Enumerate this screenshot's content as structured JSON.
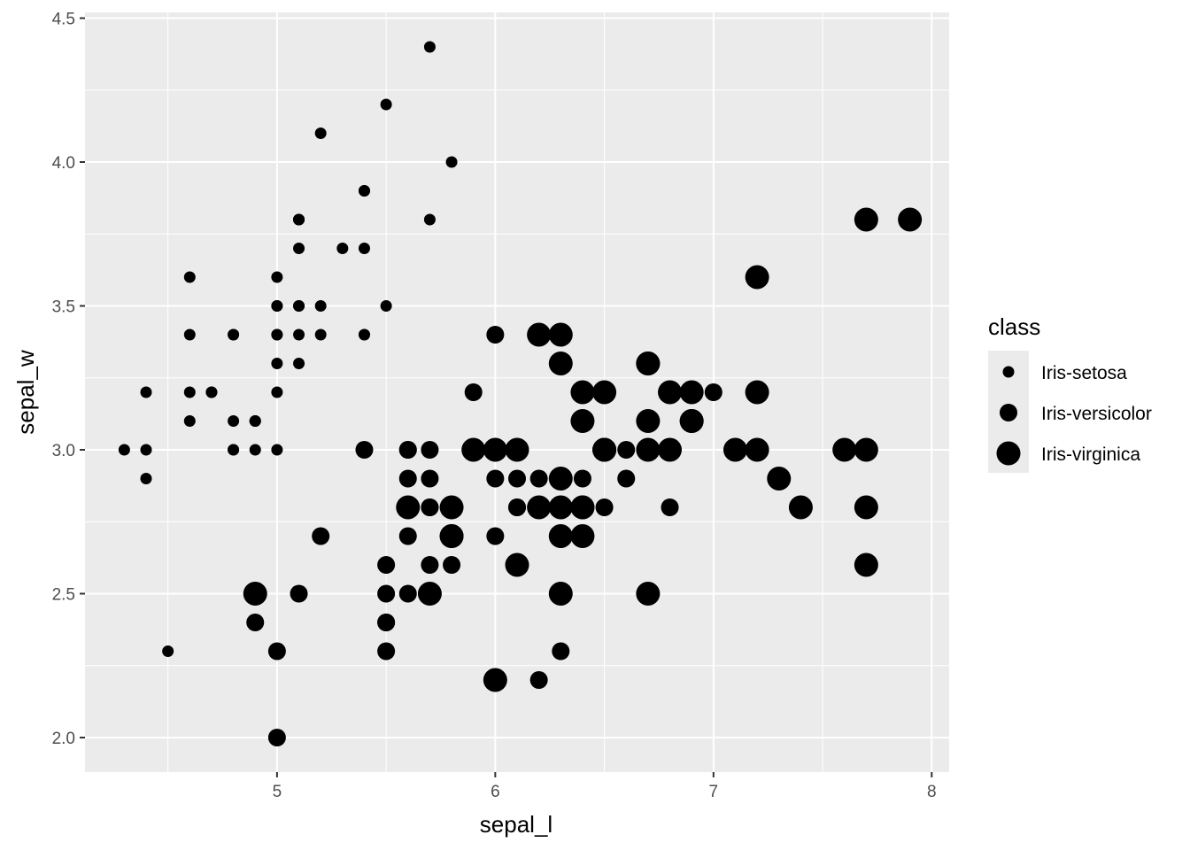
{
  "chart_data": {
    "type": "scatter",
    "xlabel": "sepal_l",
    "ylabel": "sepal_w",
    "xlim": [
      4.12,
      8.08
    ],
    "ylim": [
      1.88,
      4.52
    ],
    "x_ticks": [
      5,
      6,
      7,
      8
    ],
    "x_tick_labels": [
      "5",
      "6",
      "7",
      "8"
    ],
    "y_ticks": [
      2.0,
      2.5,
      3.0,
      3.5,
      4.0,
      4.5
    ],
    "y_tick_labels": [
      "2.0",
      "2.5",
      "3.0",
      "3.5",
      "4.0",
      "4.5"
    ],
    "grid": true,
    "legend": {
      "title": "class",
      "placement": "right",
      "entries": [
        "Iris-setosa",
        "Iris-versicolor",
        "Iris-virginica"
      ]
    },
    "colors": {
      "panel": "#EBEBEB",
      "grid": "#FFFFFF",
      "point": "#000000"
    },
    "size_scale": {
      "Iris-setosa": 1,
      "Iris-versicolor": 2,
      "Iris-virginica": 3
    },
    "series": [
      {
        "name": "Iris-setosa",
        "x": [
          5.1,
          4.9,
          4.7,
          4.6,
          5.0,
          5.4,
          4.6,
          5.0,
          4.4,
          4.9,
          5.4,
          4.8,
          4.8,
          4.3,
          5.8,
          5.7,
          5.4,
          5.1,
          5.7,
          5.1,
          5.4,
          5.1,
          4.6,
          5.1,
          4.8,
          5.0,
          5.0,
          5.2,
          5.2,
          4.7,
          4.8,
          5.4,
          5.2,
          5.5,
          4.9,
          5.0,
          5.5,
          4.9,
          4.4,
          5.1,
          5.0,
          4.5,
          4.4,
          5.0,
          5.1,
          4.8,
          5.1,
          4.6,
          5.3,
          5.0
        ],
        "y": [
          3.5,
          3.0,
          3.2,
          3.1,
          3.6,
          3.9,
          3.4,
          3.4,
          2.9,
          3.1,
          3.7,
          3.4,
          3.0,
          3.0,
          4.0,
          4.4,
          3.9,
          3.5,
          3.8,
          3.8,
          3.4,
          3.7,
          3.6,
          3.3,
          3.4,
          3.0,
          3.4,
          3.5,
          3.4,
          3.2,
          3.1,
          3.4,
          4.1,
          4.2,
          3.1,
          3.2,
          3.5,
          3.1,
          3.0,
          3.4,
          3.5,
          2.3,
          3.2,
          3.5,
          3.8,
          3.0,
          3.8,
          3.2,
          3.7,
          3.3
        ]
      },
      {
        "name": "Iris-versicolor",
        "x": [
          7.0,
          6.4,
          6.9,
          5.5,
          6.5,
          5.7,
          6.3,
          4.9,
          6.6,
          5.2,
          5.0,
          5.9,
          6.0,
          6.1,
          5.6,
          6.7,
          5.6,
          5.8,
          6.2,
          5.6,
          5.9,
          6.1,
          6.3,
          6.1,
          6.4,
          6.6,
          6.8,
          6.7,
          6.0,
          5.7,
          5.5,
          5.5,
          5.8,
          6.0,
          5.4,
          6.0,
          6.7,
          6.3,
          5.6,
          5.5,
          5.5,
          6.1,
          5.8,
          5.0,
          5.6,
          5.7,
          5.7,
          6.2,
          5.1,
          5.7
        ],
        "y": [
          3.2,
          3.2,
          3.1,
          2.3,
          2.8,
          2.8,
          3.3,
          2.4,
          2.9,
          2.7,
          2.0,
          3.0,
          2.2,
          2.9,
          2.9,
          3.1,
          3.0,
          2.7,
          2.2,
          2.5,
          3.2,
          2.8,
          2.5,
          2.8,
          2.9,
          3.0,
          2.8,
          3.0,
          2.9,
          2.6,
          2.4,
          2.4,
          2.7,
          2.7,
          3.0,
          3.4,
          3.1,
          2.3,
          3.0,
          2.5,
          2.6,
          3.0,
          2.6,
          2.3,
          2.7,
          3.0,
          2.9,
          2.9,
          2.5,
          2.8
        ]
      },
      {
        "name": "Iris-virginica",
        "x": [
          6.3,
          5.8,
          7.1,
          6.3,
          6.5,
          7.6,
          4.9,
          7.3,
          6.7,
          7.2,
          6.5,
          6.4,
          6.8,
          5.7,
          5.8,
          6.4,
          6.5,
          7.7,
          7.7,
          6.0,
          6.9,
          5.6,
          7.7,
          6.3,
          6.7,
          7.2,
          6.2,
          6.1,
          6.4,
          7.2,
          7.4,
          7.9,
          6.4,
          6.3,
          6.1,
          7.7,
          6.3,
          6.4,
          6.0,
          6.9,
          6.7,
          6.9,
          5.8,
          6.8,
          6.7,
          6.7,
          6.3,
          6.5,
          6.2,
          5.9
        ],
        "y": [
          3.3,
          2.7,
          3.0,
          2.9,
          3.0,
          3.0,
          2.5,
          2.9,
          2.5,
          3.6,
          3.2,
          2.7,
          3.0,
          2.5,
          2.8,
          3.2,
          3.0,
          3.8,
          2.6,
          2.2,
          3.2,
          2.8,
          2.8,
          2.7,
          3.3,
          3.2,
          2.8,
          3.0,
          2.8,
          3.0,
          2.8,
          3.8,
          2.8,
          2.8,
          2.6,
          3.0,
          3.4,
          3.1,
          3.0,
          3.1,
          3.1,
          3.1,
          2.7,
          3.2,
          3.3,
          3.0,
          2.5,
          3.0,
          3.4,
          3.0
        ]
      }
    ]
  }
}
